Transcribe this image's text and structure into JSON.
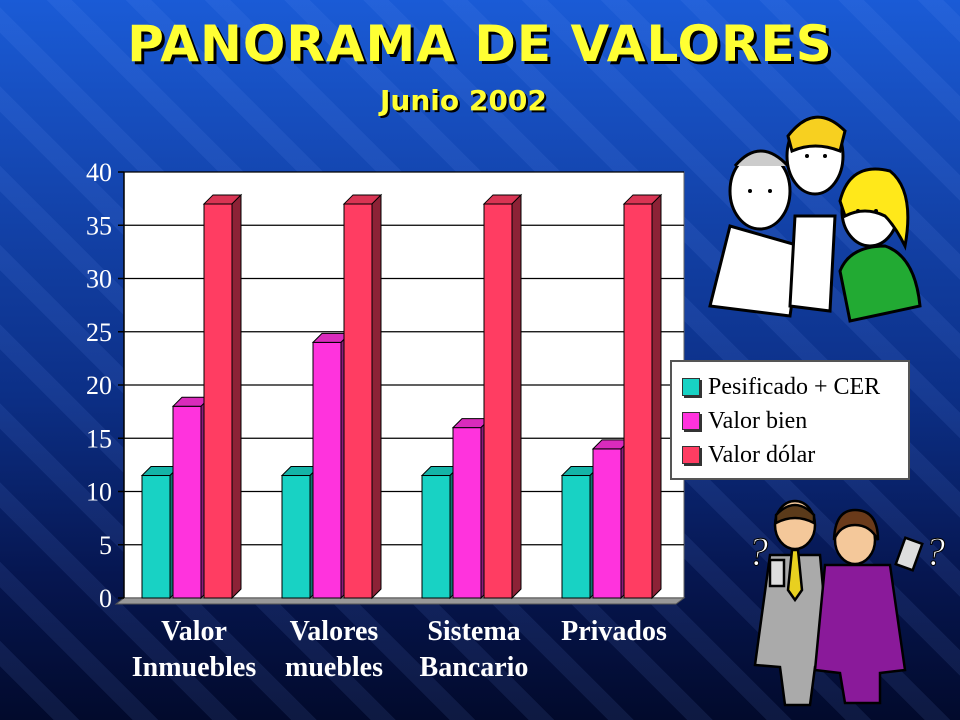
{
  "slide": {
    "title": "PANORAMA DE VALORES",
    "subtitle": "Junio 2002"
  },
  "chart_data": {
    "type": "bar",
    "categories": [
      [
        "Valor",
        "Inmuebles"
      ],
      [
        "Valores",
        "muebles"
      ],
      [
        "Sistema",
        "Bancario"
      ],
      [
        "Privados"
      ]
    ],
    "series": [
      {
        "name": "Pesificado + CER",
        "values": [
          11.5,
          11.5,
          11.5,
          11.5
        ],
        "color": "#18d2c4"
      },
      {
        "name": "Valor bien",
        "values": [
          18,
          24,
          16,
          14
        ],
        "color": "#ff33dd"
      },
      {
        "name": "Valor dólar",
        "values": [
          37,
          37,
          37,
          37
        ],
        "color": "#ff3d62"
      }
    ],
    "ylim": [
      0,
      40
    ],
    "yticks": [
      "0",
      "5",
      "10",
      "15",
      "20",
      "25",
      "30",
      "35",
      "40"
    ],
    "grid": true,
    "legend_position": "right",
    "style": "3d-bar"
  },
  "icons": [
    "worried-people-clipart-icon",
    "business-people-clipart-icon"
  ]
}
